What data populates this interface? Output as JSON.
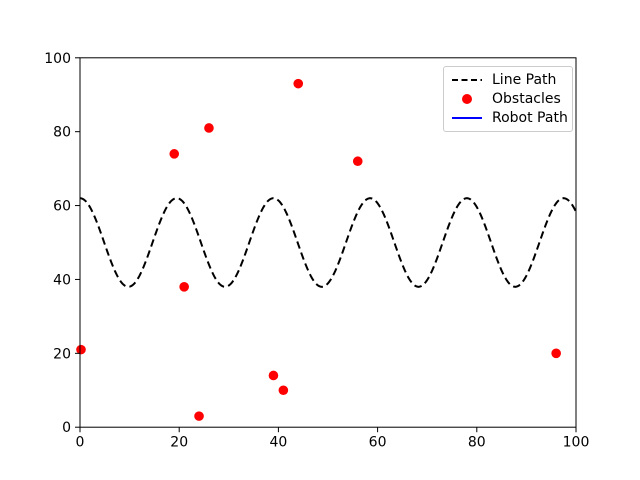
{
  "chart_data": {
    "type": "line+scatter",
    "title": "",
    "xlabel": "",
    "ylabel": "",
    "xlim": [
      0,
      100
    ],
    "ylim": [
      0,
      100
    ],
    "x_ticks": [
      0,
      20,
      40,
      60,
      80,
      100
    ],
    "y_ticks": [
      0,
      20,
      40,
      60,
      80,
      100
    ],
    "grid": false,
    "background_color": "#ffffff",
    "legend": {
      "position": "upper right",
      "border_color": "#cccccc",
      "entries": [
        {
          "label": "Line Path",
          "swatch": "dashed-line",
          "color": "#000000"
        },
        {
          "label": "Obstacles",
          "swatch": "marker",
          "color": "#ff0000"
        },
        {
          "label": "Robot Path",
          "swatch": "solid-line",
          "color": "#0000ff"
        }
      ]
    },
    "series": [
      {
        "name": "Line Path",
        "type": "line",
        "style": "dashed",
        "color": "#000000",
        "formula": "y = 50 + 12*cos(2*pi*x/19.5)",
        "offset": 50,
        "amplitude": 12,
        "period": 19.5,
        "x_range": [
          0,
          100
        ]
      },
      {
        "name": "Obstacles",
        "type": "scatter",
        "color": "#ff0000",
        "points": [
          [
            0.2,
            21
          ],
          [
            19,
            74
          ],
          [
            21,
            38
          ],
          [
            24,
            3
          ],
          [
            26,
            81
          ],
          [
            39,
            14
          ],
          [
            41,
            10
          ],
          [
            44,
            93
          ],
          [
            56,
            72
          ],
          [
            96,
            20
          ]
        ]
      },
      {
        "name": "Robot Path",
        "type": "line",
        "style": "solid",
        "color": "#0000ff",
        "points": []
      }
    ]
  }
}
